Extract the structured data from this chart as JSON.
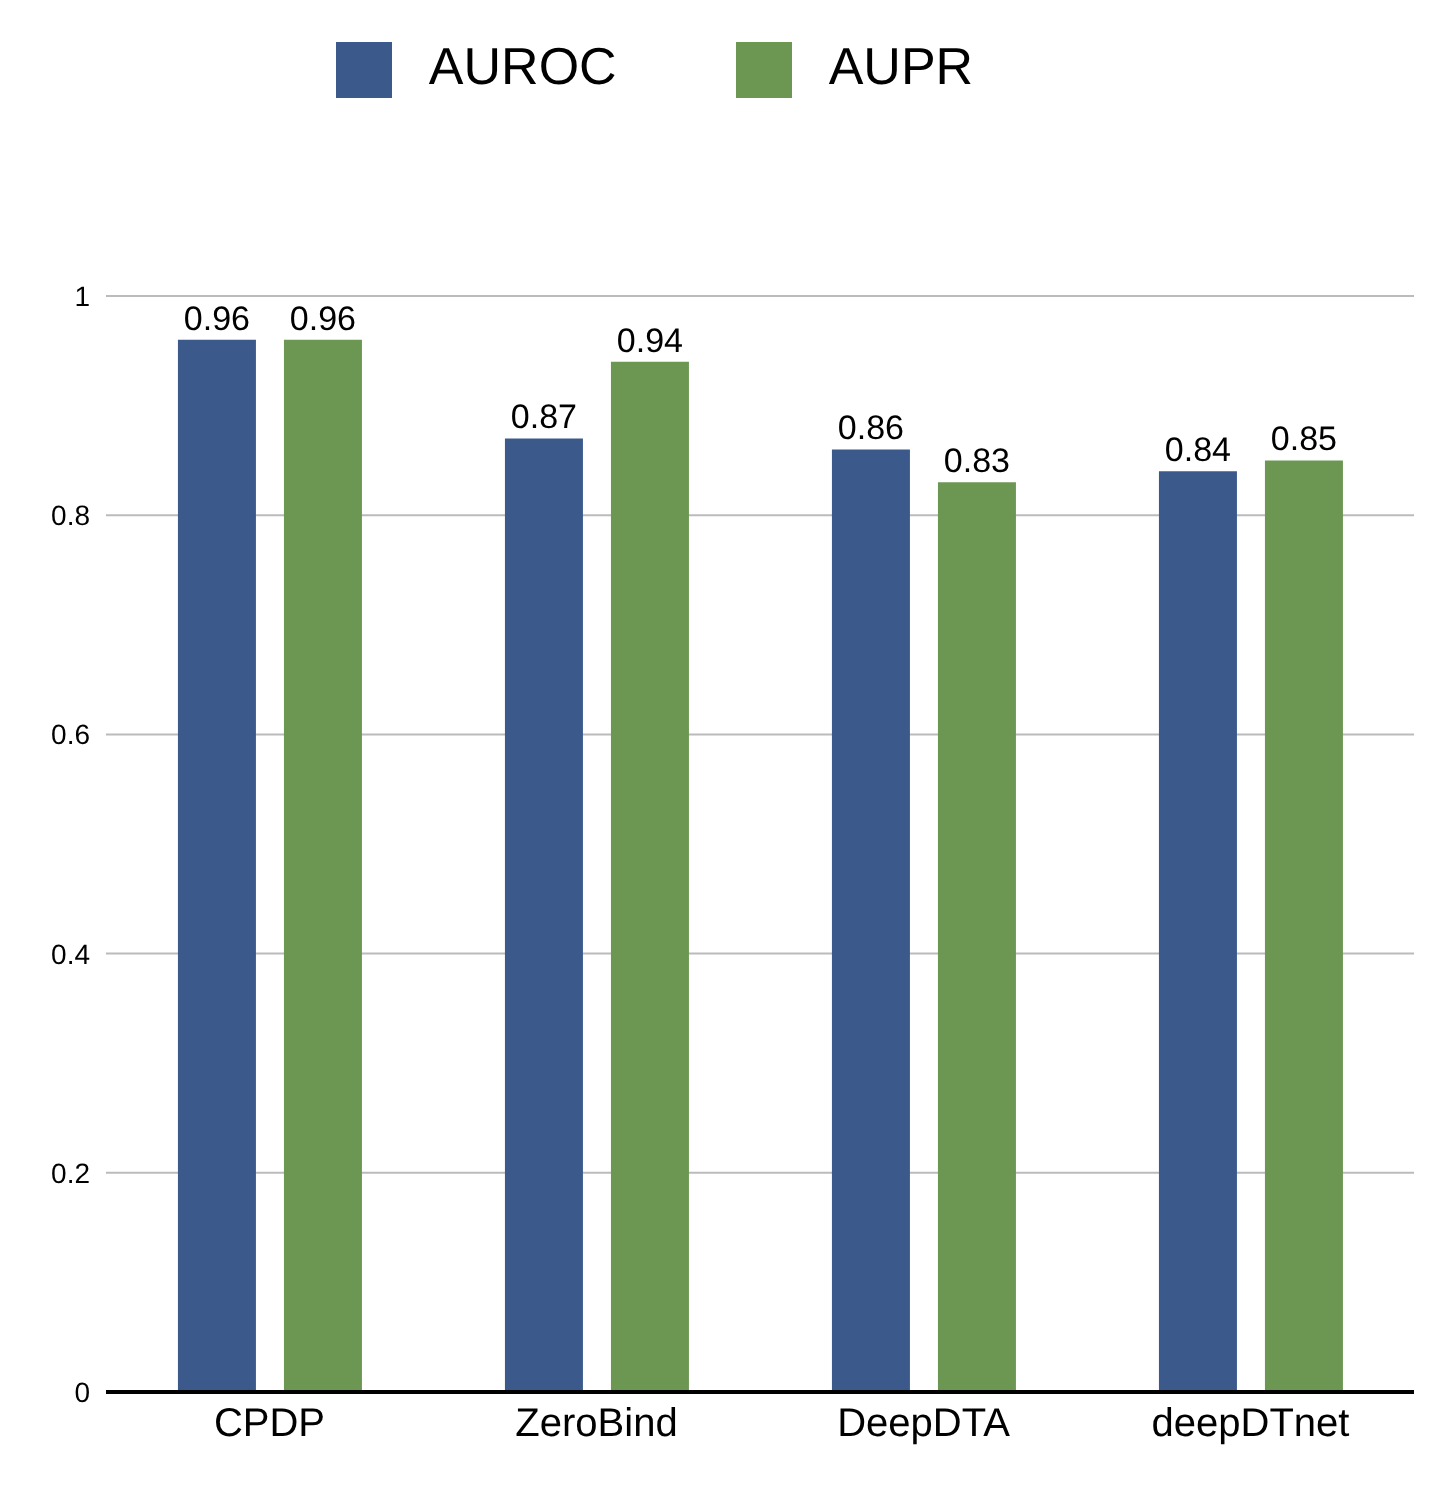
{
  "chart_data": {
    "type": "bar",
    "categories": [
      "CPDP",
      "ZeroBind",
      "DeepDTA",
      "deepDTnet"
    ],
    "series": [
      {
        "name": "AUROC",
        "color": "#3b5a8b",
        "values": [
          0.96,
          0.87,
          0.86,
          0.84
        ]
      },
      {
        "name": "AUPR",
        "color": "#6b9753",
        "values": [
          0.96,
          0.94,
          0.83,
          0.85
        ]
      }
    ],
    "ylim": [
      0,
      1
    ],
    "yticks": [
      0,
      0.2,
      0.4,
      0.6,
      0.8,
      1
    ],
    "grid": "y",
    "legend": "top",
    "data_labels": true
  }
}
